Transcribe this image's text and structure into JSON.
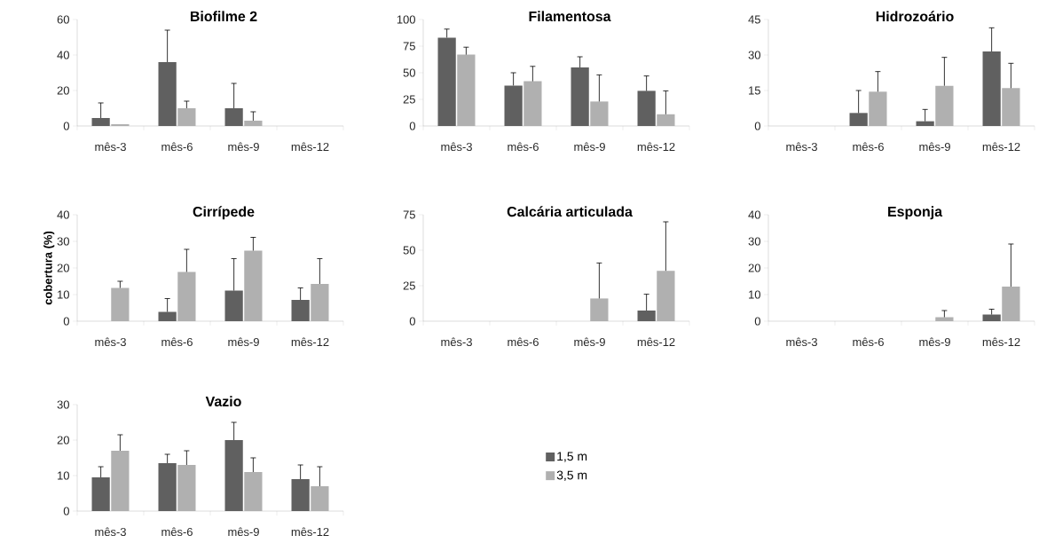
{
  "chart_data": [
    {
      "type": "bar",
      "title": "Biofilme 2",
      "categories": [
        "mês-3",
        "mês-6",
        "mês-9",
        "mês-12"
      ],
      "ylim": [
        0,
        60
      ],
      "yticks": [
        0,
        20,
        40,
        60
      ],
      "series": [
        {
          "color": "#606060",
          "values": [
            4.5,
            36,
            10,
            0
          ],
          "errors": [
            [
              4.5,
              13
            ],
            [
              36,
              54
            ],
            [
              10,
              24
            ],
            null
          ]
        },
        {
          "color": "#b0b0b0",
          "values": [
            1,
            10,
            3,
            0
          ],
          "errors": [
            null,
            [
              10,
              14
            ],
            [
              3,
              8
            ],
            null
          ]
        }
      ]
    },
    {
      "type": "bar",
      "title": "Filamentosa",
      "categories": [
        "mês-3",
        "mês-6",
        "mês-9",
        "mês-12"
      ],
      "ylim": [
        0,
        100
      ],
      "yticks": [
        0,
        25,
        50,
        75,
        100
      ],
      "series": [
        {
          "color": "#606060",
          "values": [
            83,
            38,
            55,
            33
          ],
          "errors": [
            [
              83,
              91
            ],
            [
              38,
              50
            ],
            [
              55,
              65
            ],
            [
              33,
              47
            ]
          ]
        },
        {
          "color": "#b0b0b0",
          "values": [
            67,
            42,
            23,
            11
          ],
          "errors": [
            [
              67,
              74
            ],
            [
              42,
              56
            ],
            [
              23,
              48
            ],
            [
              11,
              33
            ]
          ]
        }
      ]
    },
    {
      "type": "bar",
      "title": "Hidrozoário",
      "categories": [
        "mês-3",
        "mês-6",
        "mês-9",
        "mês-12"
      ],
      "ylim": [
        0,
        45
      ],
      "yticks": [
        0,
        15,
        30,
        45
      ],
      "series": [
        {
          "color": "#606060",
          "values": [
            0,
            5.5,
            2,
            31.5
          ],
          "errors": [
            null,
            [
              5.5,
              15
            ],
            [
              2,
              7
            ],
            [
              31.5,
              41.5
            ]
          ]
        },
        {
          "color": "#b0b0b0",
          "values": [
            0,
            14.5,
            17,
            16
          ],
          "errors": [
            null,
            [
              14.5,
              23
            ],
            [
              17,
              29
            ],
            [
              16,
              26.5
            ]
          ]
        }
      ]
    },
    {
      "type": "bar",
      "title": "Cirrípede",
      "ylabel": "cobertura (%)",
      "categories": [
        "mês-3",
        "mês-6",
        "mês-9",
        "mês-12"
      ],
      "ylim": [
        0,
        40
      ],
      "yticks": [
        0,
        10,
        20,
        30,
        40
      ],
      "series": [
        {
          "color": "#606060",
          "values": [
            0,
            3.5,
            11.5,
            8
          ],
          "errors": [
            null,
            [
              3.5,
              8.5
            ],
            [
              11.5,
              23.5
            ],
            [
              8,
              12.5
            ]
          ]
        },
        {
          "color": "#b0b0b0",
          "values": [
            12.5,
            18.5,
            26.5,
            14
          ],
          "errors": [
            [
              12.5,
              15
            ],
            [
              18.5,
              27
            ],
            [
              26.5,
              31.5
            ],
            [
              14,
              23.5
            ]
          ]
        }
      ]
    },
    {
      "type": "bar",
      "title": "Calcária articulada",
      "categories": [
        "mês-3",
        "mês-6",
        "mês-9",
        "mês-12"
      ],
      "ylim": [
        0,
        75
      ],
      "yticks": [
        0,
        25,
        50,
        75
      ],
      "series": [
        {
          "color": "#606060",
          "values": [
            0,
            0,
            0,
            7.5
          ],
          "errors": [
            null,
            null,
            null,
            [
              7.5,
              19
            ]
          ]
        },
        {
          "color": "#b0b0b0",
          "values": [
            0,
            0,
            16,
            35.5
          ],
          "errors": [
            null,
            null,
            [
              16,
              41
            ],
            [
              35.5,
              70
            ]
          ]
        }
      ]
    },
    {
      "type": "bar",
      "title": "Esponja",
      "categories": [
        "mês-3",
        "mês-6",
        "mês-9",
        "mês-12"
      ],
      "ylim": [
        0,
        40
      ],
      "yticks": [
        0,
        10,
        20,
        30,
        40
      ],
      "series": [
        {
          "color": "#606060",
          "values": [
            0,
            0,
            0,
            2.5
          ],
          "errors": [
            null,
            null,
            null,
            [
              2.5,
              4.5
            ]
          ]
        },
        {
          "color": "#b0b0b0",
          "values": [
            0,
            0,
            1.5,
            13
          ],
          "errors": [
            null,
            null,
            [
              1.5,
              4
            ],
            [
              13,
              29
            ]
          ]
        }
      ]
    },
    {
      "type": "bar",
      "title": "Vazio",
      "categories": [
        "mês-3",
        "mês-6",
        "mês-9",
        "mês-12"
      ],
      "ylim": [
        0,
        30
      ],
      "yticks": [
        0,
        10,
        20,
        30
      ],
      "legend": "right",
      "series": [
        {
          "name": "1,5 m",
          "color": "#606060",
          "values": [
            9.5,
            13.5,
            20,
            9
          ],
          "errors": [
            [
              9.5,
              12.5
            ],
            [
              13.5,
              16
            ],
            [
              20,
              25
            ],
            [
              9,
              13
            ]
          ]
        },
        {
          "name": "3,5 m",
          "color": "#b0b0b0",
          "values": [
            17,
            13,
            11,
            7
          ],
          "errors": [
            [
              17,
              21.5
            ],
            [
              13,
              17
            ],
            [
              11,
              15
            ],
            [
              7,
              12.5
            ]
          ]
        }
      ]
    }
  ]
}
